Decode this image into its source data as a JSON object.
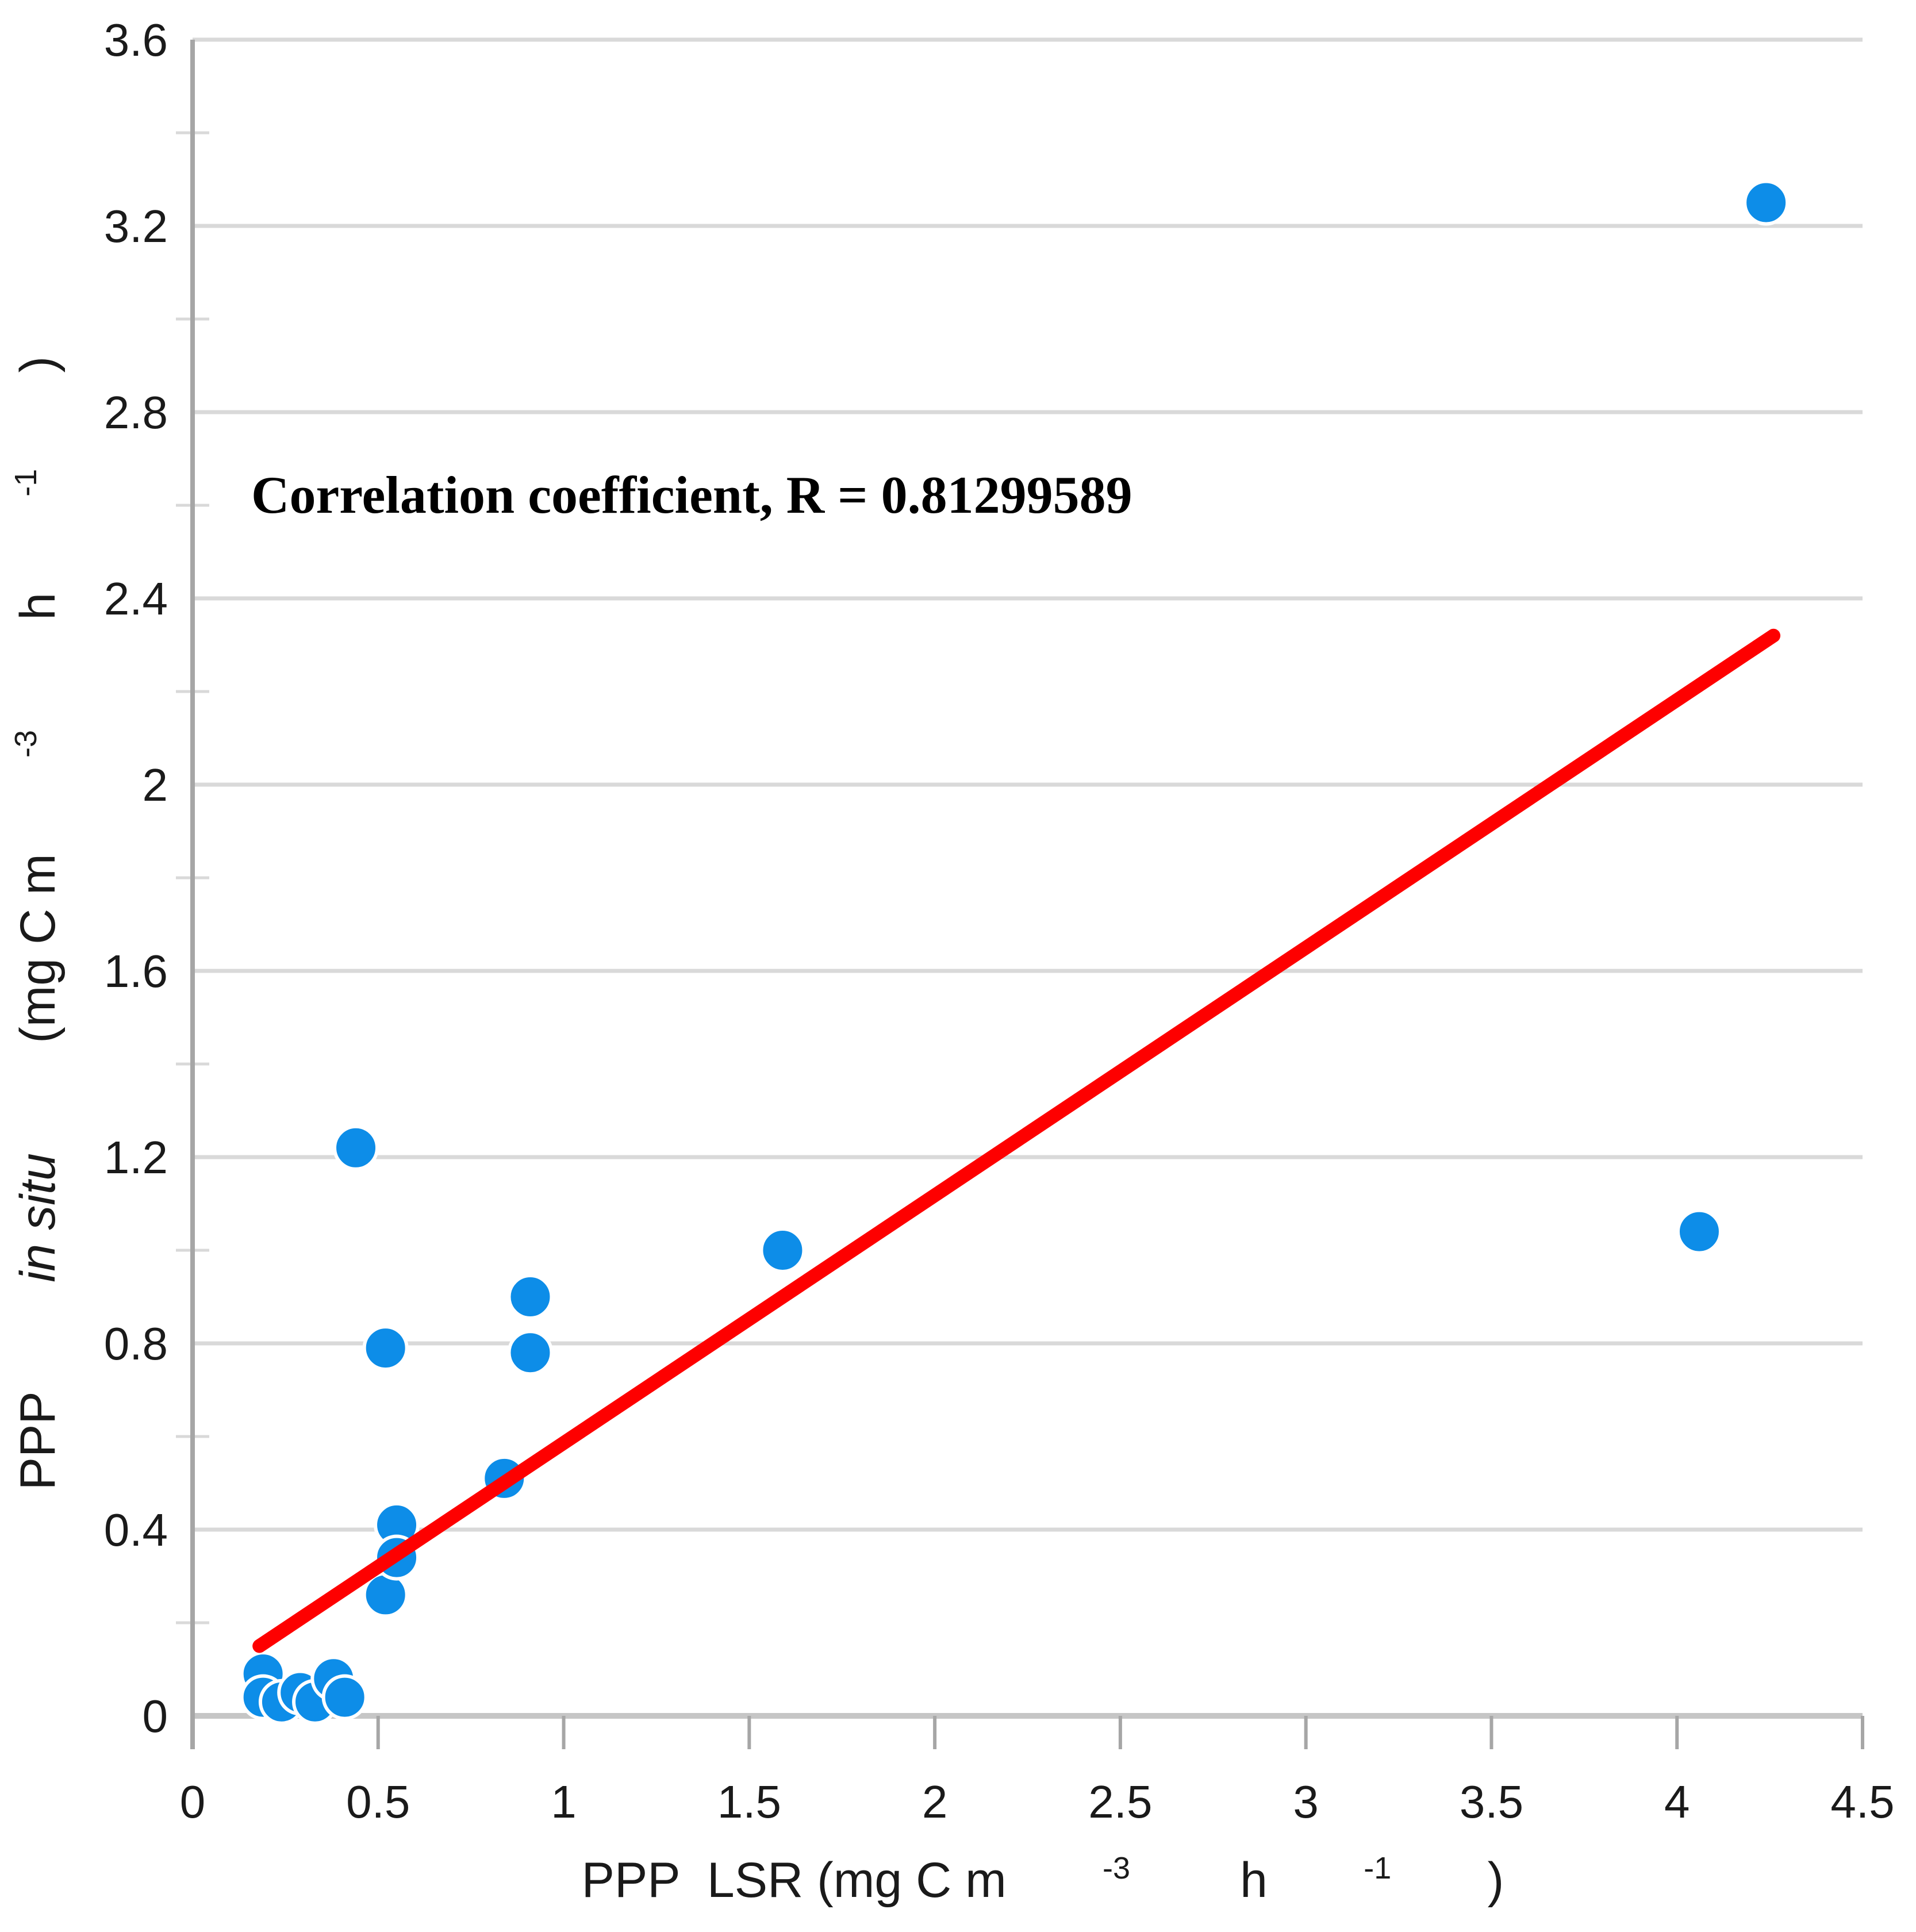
{
  "chart_data": {
    "type": "scatter",
    "annotation": "Correlation coefficient, R = 0.81299589",
    "xlabel": "PPP  LSR (mg C m-3 h-1)",
    "ylabel": "PPP in situ (mg C m-3 h-1)",
    "xlabel_parts": {
      "pre": "PPP  LSR (mg C m",
      "sup1": "-3",
      "mid": " h",
      "sup2": "-1",
      "post": ")"
    },
    "ylabel_parts": {
      "pre": "PPP ",
      "italic": "in situ",
      "mid1": " (mg C m",
      "sup1": "-3",
      "mid2": " h",
      "sup2": "-1",
      "post": ")"
    },
    "xlim": [
      0,
      4.5
    ],
    "ylim": [
      0,
      3.6
    ],
    "x_ticks": [
      0,
      0.5,
      1,
      1.5,
      2,
      2.5,
      3,
      3.5,
      4,
      4.5
    ],
    "y_ticks": [
      0,
      0.4,
      0.8,
      1.2,
      1.6,
      2,
      2.4,
      2.8,
      3.2,
      3.6
    ],
    "x_tick_labels": [
      "0",
      "0.5",
      "1",
      "1.5",
      "2",
      "2.5",
      "3",
      "3.5",
      "4",
      "4.5"
    ],
    "y_tick_labels": [
      "0",
      "0.4",
      "0.8",
      "1.2",
      "1.6",
      "2",
      "2.4",
      "2.8",
      "3.2",
      "3.6"
    ],
    "y_minor_tick_step": 0.2,
    "grid": true,
    "legend": "none",
    "points": [
      {
        "x": 0.19,
        "y": 0.09
      },
      {
        "x": 0.19,
        "y": 0.04
      },
      {
        "x": 0.24,
        "y": 0.03
      },
      {
        "x": 0.29,
        "y": 0.05
      },
      {
        "x": 0.33,
        "y": 0.03
      },
      {
        "x": 0.38,
        "y": 0.08
      },
      {
        "x": 0.41,
        "y": 0.04
      },
      {
        "x": 0.44,
        "y": 1.22
      },
      {
        "x": 0.52,
        "y": 0.79
      },
      {
        "x": 0.52,
        "y": 0.26
      },
      {
        "x": 0.55,
        "y": 0.41
      },
      {
        "x": 0.55,
        "y": 0.34
      },
      {
        "x": 0.84,
        "y": 0.51
      },
      {
        "x": 0.91,
        "y": 0.9
      },
      {
        "x": 0.91,
        "y": 0.78
      },
      {
        "x": 1.59,
        "y": 1.0
      },
      {
        "x": 4.06,
        "y": 1.04
      },
      {
        "x": 4.24,
        "y": 3.25
      }
    ],
    "trendline": {
      "x1": 0.18,
      "y1": 0.15,
      "x2": 4.26,
      "y2": 2.32
    },
    "colors": {
      "marker": "#0d8de8",
      "marker_edge": "#ffffff",
      "trendline": "#fe0000",
      "gridline": "#d9d9d9",
      "axis_line": "#a6a6a6",
      "x_axis_line": "#c6c6c6",
      "text": "#1a1a1a"
    }
  }
}
